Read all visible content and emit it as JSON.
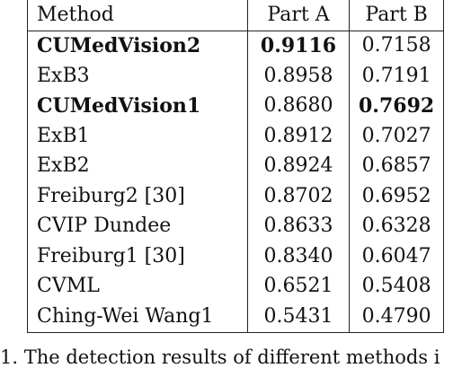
{
  "table": {
    "headers": [
      "Method",
      "Part A",
      "Part B"
    ],
    "rows": [
      {
        "method": "CUMedVision2",
        "part_a": "0.9116",
        "part_b": "0.7158",
        "bold_method": true,
        "bold_a": true,
        "bold_b": false
      },
      {
        "method": "ExB3",
        "part_a": "0.8958",
        "part_b": "0.7191",
        "bold_method": false,
        "bold_a": false,
        "bold_b": false
      },
      {
        "method": "CUMedVision1",
        "part_a": "0.8680",
        "part_b": "0.7692",
        "bold_method": true,
        "bold_a": false,
        "bold_b": true
      },
      {
        "method": "ExB1",
        "part_a": "0.8912",
        "part_b": "0.7027",
        "bold_method": false,
        "bold_a": false,
        "bold_b": false
      },
      {
        "method": "ExB2",
        "part_a": "0.8924",
        "part_b": "0.6857",
        "bold_method": false,
        "bold_a": false,
        "bold_b": false
      },
      {
        "method": "Freiburg2 [30]",
        "part_a": "0.8702",
        "part_b": "0.6952",
        "bold_method": false,
        "bold_a": false,
        "bold_b": false
      },
      {
        "method": "CVIP Dundee",
        "part_a": "0.8633",
        "part_b": "0.6328",
        "bold_method": false,
        "bold_a": false,
        "bold_b": false
      },
      {
        "method": "Freiburg1 [30]",
        "part_a": "0.8340",
        "part_b": "0.6047",
        "bold_method": false,
        "bold_a": false,
        "bold_b": false
      },
      {
        "method": "CVML",
        "part_a": "0.6521",
        "part_b": "0.5408",
        "bold_method": false,
        "bold_a": false,
        "bold_b": false
      },
      {
        "method": "Ching-Wei Wang1",
        "part_a": "0.5431",
        "part_b": "0.4790",
        "bold_method": false,
        "bold_a": false,
        "bold_b": false
      }
    ]
  },
  "caption": "1.  The detection results of different methods i"
}
